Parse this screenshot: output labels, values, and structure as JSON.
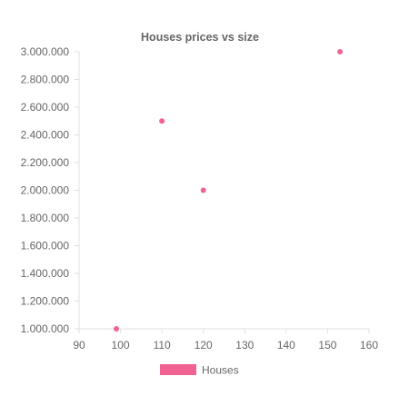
{
  "chart_data": {
    "type": "scatter",
    "title": "Houses prices vs size",
    "xlabel": "",
    "ylabel": "",
    "xlim": [
      90,
      160
    ],
    "ylim": [
      1000000,
      3000000
    ],
    "x_ticks": [
      90,
      100,
      110,
      120,
      130,
      140,
      150,
      160
    ],
    "y_ticks": [
      1000000,
      1200000,
      1400000,
      1600000,
      1800000,
      2000000,
      2200000,
      2400000,
      2600000,
      2800000,
      3000000
    ],
    "y_tick_labels": [
      "1.000.000",
      "1.200.000",
      "1.400.000",
      "1.600.000",
      "1.800.000",
      "2.000.000",
      "2.200.000",
      "2.400.000",
      "2.600.000",
      "2.800.000",
      "3.000.000"
    ],
    "series": [
      {
        "name": "Houses",
        "color": "#f06292",
        "points": [
          {
            "x": 99,
            "y": 1000000
          },
          {
            "x": 110,
            "y": 2500000
          },
          {
            "x": 120,
            "y": 2000000
          },
          {
            "x": 153,
            "y": 3000000
          }
        ]
      }
    ],
    "grid": false,
    "legend_position": "bottom"
  }
}
